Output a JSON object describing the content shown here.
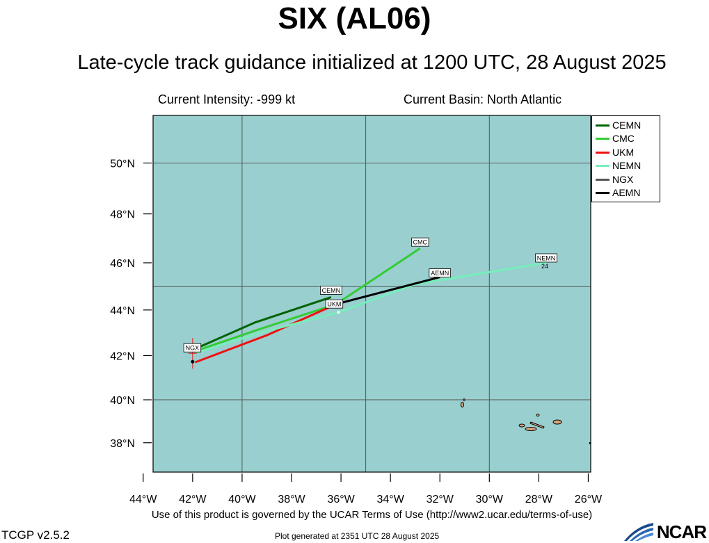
{
  "header": {
    "title": "SIX (AL06)",
    "subtitle": "Late-cycle track guidance initialized at 1200 UTC, 28 August 2025",
    "intensity": "Current Intensity: -999 kt",
    "basin": "Current Basin: North Atlantic"
  },
  "map": {
    "projection": "mercator",
    "lon_range": [
      -43.6,
      -25.9
    ],
    "lat_range": [
      36.6,
      51.8
    ],
    "grid_lons": [
      -40,
      -35,
      -30
    ],
    "grid_lats": [
      40,
      45,
      50
    ],
    "ocean_color": "#99cfcf",
    "land_color": "#d9a37a",
    "lon_ticks": [
      {
        "lon": -44,
        "label": "44°W"
      },
      {
        "lon": -42,
        "label": "42°W"
      },
      {
        "lon": -40,
        "label": "40°W"
      },
      {
        "lon": -38,
        "label": "38°W"
      },
      {
        "lon": -36,
        "label": "36°W"
      },
      {
        "lon": -34,
        "label": "34°W"
      },
      {
        "lon": -32,
        "label": "32°W"
      },
      {
        "lon": -30,
        "label": "30°W"
      },
      {
        "lon": -28,
        "label": "28°W"
      },
      {
        "lon": -26,
        "label": "26°W"
      }
    ],
    "lat_ticks": [
      {
        "lat": 38,
        "label": "38°N"
      },
      {
        "lat": 40,
        "label": "40°N"
      },
      {
        "lat": 42,
        "label": "42°N"
      },
      {
        "lat": 44,
        "label": "44°N"
      },
      {
        "lat": 46,
        "label": "46°N"
      },
      {
        "lat": 48,
        "label": "48°N"
      },
      {
        "lat": 50,
        "label": "50°N"
      }
    ],
    "current_position": {
      "lon": -42.0,
      "lat": 42.1
    }
  },
  "tracks": [
    {
      "name": "CEMN",
      "color": "#006400",
      "points": [
        [
          -41.9,
          42.3
        ],
        [
          -39.5,
          43.45
        ],
        [
          -36.4,
          44.55
        ]
      ],
      "end_label": "CEMN"
    },
    {
      "name": "CMC",
      "color": "#33cc33",
      "points": [
        [
          -41.9,
          42.2
        ],
        [
          -39.2,
          43.2
        ],
        [
          -36.2,
          44.25
        ],
        [
          -32.8,
          46.6
        ]
      ],
      "end_label": "CMC"
    },
    {
      "name": "UKM",
      "color": "#ee1111",
      "points": [
        [
          -41.9,
          41.7
        ],
        [
          -39.0,
          42.9
        ],
        [
          -36.3,
          44.2
        ]
      ],
      "end_label": "UKM"
    },
    {
      "name": "NEMN",
      "color": "#77eebb",
      "points": [
        [
          -41.9,
          42.1
        ],
        [
          -39.3,
          43.0
        ],
        [
          -36.1,
          43.9
        ],
        [
          -33.0,
          45.1
        ],
        [
          -27.7,
          46.0
        ]
      ],
      "end_label": "NEMN",
      "hour_label": "24"
    },
    {
      "name": "NGX",
      "color": "#555555",
      "points": [
        [
          -41.9,
          42.1
        ]
      ],
      "end_label": "NGX"
    },
    {
      "name": "AEMN",
      "color": "#000000",
      "points": [
        [
          -36.2,
          44.25
        ],
        [
          -32.0,
          45.4
        ]
      ],
      "end_label": "AEMN"
    }
  ],
  "footer": {
    "terms": "Use of this product is governed by the UCAR Terms of Use (http://www2.ucar.edu/terms-of-use)",
    "version": "TCGP v2.5.2",
    "generated": "Plot generated at 2351 UTC   28 August 2025",
    "logo_text": "NCAR"
  }
}
